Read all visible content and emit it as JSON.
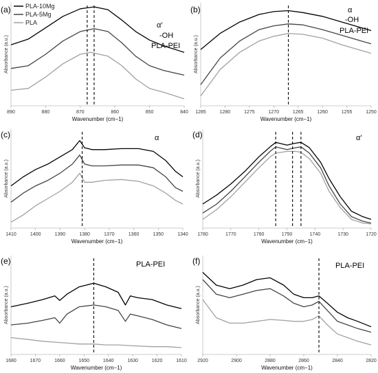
{
  "chart_data": [
    {
      "type": "line",
      "panel_label": "(a)",
      "xlabel": "Wavenumber (cm−1)",
      "ylabel": "Absorbance (a.u.)",
      "xlim": [
        890,
        840
      ],
      "ylim": [
        0,
        1
      ],
      "xticks": [
        890,
        880,
        870,
        860,
        850,
        840
      ],
      "annotations": [
        "α′",
        "-OH",
        "PLA-PEI"
      ],
      "vlines": [
        868,
        866
      ],
      "legend": [
        "PLA-10Mg",
        "PLA-5Mg",
        "PLA"
      ],
      "series": [
        {
          "name": "PLA-10Mg",
          "color": "#000000",
          "x": [
            890,
            885,
            880,
            875,
            870,
            866,
            862,
            858,
            854,
            850,
            846,
            840
          ],
          "y": [
            0.6,
            0.66,
            0.78,
            0.9,
            0.98,
            1.0,
            0.97,
            0.86,
            0.74,
            0.65,
            0.59,
            0.52
          ]
        },
        {
          "name": "PLA-5Mg",
          "color": "#444444",
          "x": [
            890,
            885,
            880,
            875,
            870,
            866,
            862,
            858,
            854,
            850,
            846,
            840
          ],
          "y": [
            0.35,
            0.38,
            0.5,
            0.64,
            0.74,
            0.77,
            0.74,
            0.62,
            0.48,
            0.38,
            0.33,
            0.28
          ]
        },
        {
          "name": "PLA",
          "color": "#a0a0a0",
          "x": [
            890,
            885,
            880,
            875,
            870,
            867,
            862,
            858,
            854,
            850,
            846,
            840
          ],
          "y": [
            0.12,
            0.14,
            0.26,
            0.4,
            0.5,
            0.52,
            0.48,
            0.38,
            0.24,
            0.14,
            0.1,
            0.03
          ]
        }
      ]
    },
    {
      "type": "line",
      "panel_label": "(b)",
      "xlabel": "Wavenumber (cm−1)",
      "ylabel": "Absorbance (a.u.)",
      "xlim": [
        1285,
        1250
      ],
      "ylim": [
        0,
        1
      ],
      "xticks": [
        1285,
        1280,
        1275,
        1270,
        1265,
        1260,
        1255,
        1250
      ],
      "annotations": [
        "α",
        "-OH",
        "PLA-PEI"
      ],
      "vlines": [
        1267
      ],
      "series": [
        {
          "name": "PLA-10Mg",
          "color": "#000000",
          "x": [
            1285,
            1281,
            1277,
            1273,
            1270,
            1267,
            1264,
            1260,
            1256,
            1252,
            1250
          ],
          "y": [
            0.55,
            0.72,
            0.84,
            0.92,
            0.95,
            0.96,
            0.94,
            0.9,
            0.84,
            0.78,
            0.75
          ]
        },
        {
          "name": "PLA-5Mg",
          "color": "#444444",
          "x": [
            1285,
            1281,
            1277,
            1273,
            1270,
            1267,
            1264,
            1260,
            1256,
            1252,
            1250
          ],
          "y": [
            0.18,
            0.46,
            0.64,
            0.76,
            0.8,
            0.82,
            0.81,
            0.76,
            0.7,
            0.64,
            0.61
          ]
        },
        {
          "name": "PLA",
          "color": "#a0a0a0",
          "x": [
            1285,
            1281,
            1277,
            1273,
            1270,
            1267,
            1264,
            1260,
            1256,
            1252,
            1250
          ],
          "y": [
            0.06,
            0.34,
            0.52,
            0.64,
            0.69,
            0.72,
            0.71,
            0.67,
            0.6,
            0.54,
            0.51
          ]
        }
      ]
    },
    {
      "type": "line",
      "panel_label": "(c)",
      "xlabel": "Wavenumber (cm−1)",
      "ylabel": "Absorbance (a.u.)",
      "xlim": [
        1410,
        1340
      ],
      "ylim": [
        0,
        1
      ],
      "xticks": [
        1410,
        1400,
        1390,
        1380,
        1370,
        1360,
        1350,
        1340
      ],
      "annotations": [
        "α"
      ],
      "vlines": [
        1381
      ],
      "series": [
        {
          "name": "PLA-10Mg",
          "color": "#000000",
          "x": [
            1410,
            1405,
            1400,
            1395,
            1390,
            1385,
            1382,
            1380,
            1377,
            1372,
            1365,
            1358,
            1352,
            1347,
            1343,
            1340
          ],
          "y": [
            0.42,
            0.52,
            0.6,
            0.66,
            0.74,
            0.82,
            0.92,
            0.84,
            0.82,
            0.82,
            0.83,
            0.83,
            0.8,
            0.7,
            0.58,
            0.52
          ]
        },
        {
          "name": "PLA-5Mg",
          "color": "#444444",
          "x": [
            1410,
            1405,
            1400,
            1395,
            1390,
            1385,
            1382,
            1380,
            1377,
            1372,
            1365,
            1358,
            1352,
            1347,
            1343,
            1340
          ],
          "y": [
            0.24,
            0.34,
            0.42,
            0.48,
            0.56,
            0.66,
            0.76,
            0.66,
            0.64,
            0.64,
            0.65,
            0.65,
            0.62,
            0.52,
            0.4,
            0.36
          ]
        },
        {
          "name": "PLA",
          "color": "#a0a0a0",
          "x": [
            1410,
            1405,
            1400,
            1395,
            1390,
            1385,
            1382,
            1380,
            1377,
            1372,
            1365,
            1358,
            1352,
            1347,
            1343,
            1340
          ],
          "y": [
            0.02,
            0.1,
            0.2,
            0.28,
            0.36,
            0.46,
            0.56,
            0.46,
            0.46,
            0.48,
            0.49,
            0.47,
            0.42,
            0.34,
            0.26,
            0.22
          ]
        }
      ]
    },
    {
      "type": "line",
      "panel_label": "(d)",
      "xlabel": "Wavenumber (cm−1)",
      "ylabel": "Absorbance (a.u.)",
      "xlim": [
        1780,
        1720
      ],
      "ylim": [
        0,
        1
      ],
      "xticks": [
        1780,
        1770,
        1760,
        1750,
        1740,
        1730,
        1720
      ],
      "annotations": [
        "α′"
      ],
      "vlines": [
        1754,
        1748,
        1745
      ],
      "series": [
        {
          "name": "PLA-10Mg",
          "color": "#000000",
          "x": [
            1780,
            1775,
            1770,
            1765,
            1760,
            1756,
            1754,
            1750,
            1747,
            1745,
            1742,
            1738,
            1735,
            1731,
            1727,
            1723,
            1720
          ],
          "y": [
            0.22,
            0.32,
            0.44,
            0.58,
            0.74,
            0.85,
            0.9,
            0.87,
            0.89,
            0.9,
            0.84,
            0.68,
            0.5,
            0.3,
            0.14,
            0.08,
            0.05
          ]
        },
        {
          "name": "PLA-5Mg",
          "color": "#444444",
          "x": [
            1780,
            1775,
            1770,
            1765,
            1760,
            1756,
            1754,
            1750,
            1747,
            1745,
            1742,
            1738,
            1735,
            1731,
            1727,
            1723,
            1720
          ],
          "y": [
            0.12,
            0.22,
            0.36,
            0.52,
            0.68,
            0.8,
            0.85,
            0.82,
            0.84,
            0.85,
            0.78,
            0.62,
            0.42,
            0.22,
            0.08,
            0.03,
            0.01
          ]
        },
        {
          "name": "PLA",
          "color": "#a0a0a0",
          "x": [
            1780,
            1775,
            1770,
            1765,
            1760,
            1756,
            1754,
            1750,
            1747,
            1745,
            1742,
            1738,
            1735,
            1731,
            1727,
            1723,
            1720
          ],
          "y": [
            0.05,
            0.16,
            0.3,
            0.46,
            0.62,
            0.74,
            0.78,
            0.8,
            0.8,
            0.79,
            0.72,
            0.56,
            0.36,
            0.18,
            0.05,
            0.01,
            0.0
          ]
        }
      ]
    },
    {
      "type": "line",
      "panel_label": "(e)",
      "xlabel": "Wavenumber (cm−1)",
      "ylabel": "Absorbance (a.u.)",
      "xlim": [
        1680,
        1610
      ],
      "ylim": [
        0,
        1
      ],
      "xticks": [
        1680,
        1670,
        1660,
        1650,
        1640,
        1630,
        1620,
        1610
      ],
      "annotations": [
        "PLA-PEI"
      ],
      "vlines": [
        1646
      ],
      "series": [
        {
          "name": "PLA-10Mg",
          "color": "#000000",
          "x": [
            1680,
            1673,
            1667,
            1662,
            1660,
            1657,
            1652,
            1646,
            1641,
            1636,
            1633,
            1631,
            1628,
            1622,
            1616,
            1610
          ],
          "y": [
            0.48,
            0.52,
            0.56,
            0.6,
            0.55,
            0.62,
            0.7,
            0.74,
            0.7,
            0.64,
            0.5,
            0.6,
            0.58,
            0.56,
            0.5,
            0.46
          ]
        },
        {
          "name": "PLA-5Mg",
          "color": "#444444",
          "x": [
            1680,
            1673,
            1667,
            1662,
            1660,
            1657,
            1652,
            1646,
            1641,
            1636,
            1633,
            1631,
            1628,
            1622,
            1616,
            1610
          ],
          "y": [
            0.28,
            0.3,
            0.33,
            0.36,
            0.3,
            0.4,
            0.48,
            0.5,
            0.48,
            0.44,
            0.32,
            0.4,
            0.38,
            0.34,
            0.28,
            0.24
          ]
        },
        {
          "name": "PLA",
          "color": "#a0a0a0",
          "x": [
            1680,
            1673,
            1667,
            1662,
            1657,
            1652,
            1646,
            1641,
            1636,
            1630,
            1622,
            1616,
            1610
          ],
          "y": [
            0.14,
            0.12,
            0.1,
            0.09,
            0.08,
            0.07,
            0.07,
            0.06,
            0.06,
            0.05,
            0.04,
            0.04,
            0.03
          ]
        }
      ]
    },
    {
      "type": "line",
      "panel_label": "(f)",
      "xlabel": "Wavenumber (cm−1)",
      "ylabel": "Absorbance (a.u.)",
      "xlim": [
        2920,
        2820
      ],
      "ylim": [
        0,
        1
      ],
      "xticks": [
        2920,
        2900,
        2880,
        2860,
        2840,
        2820
      ],
      "annotations": [
        "PLA-PEI"
      ],
      "vlines": [
        2851
      ],
      "series": [
        {
          "name": "PLA-10Mg",
          "color": "#000000",
          "x": [
            2920,
            2912,
            2904,
            2896,
            2888,
            2880,
            2872,
            2866,
            2860,
            2855,
            2851,
            2846,
            2840,
            2834,
            2828,
            2820
          ],
          "y": [
            0.86,
            0.72,
            0.68,
            0.72,
            0.78,
            0.8,
            0.72,
            0.62,
            0.58,
            0.58,
            0.6,
            0.52,
            0.42,
            0.36,
            0.32,
            0.26
          ]
        },
        {
          "name": "PLA-5Mg",
          "color": "#444444",
          "x": [
            2920,
            2912,
            2904,
            2896,
            2888,
            2880,
            2872,
            2866,
            2860,
            2855,
            2851,
            2846,
            2840,
            2834,
            2828,
            2820
          ],
          "y": [
            0.78,
            0.62,
            0.58,
            0.62,
            0.66,
            0.68,
            0.6,
            0.52,
            0.48,
            0.5,
            0.54,
            0.44,
            0.32,
            0.28,
            0.24,
            0.2
          ]
        },
        {
          "name": "PLA",
          "color": "#a0a0a0",
          "x": [
            2920,
            2912,
            2904,
            2896,
            2888,
            2880,
            2872,
            2866,
            2860,
            2855,
            2851,
            2846,
            2840,
            2834,
            2828,
            2820
          ],
          "y": [
            0.56,
            0.36,
            0.3,
            0.3,
            0.32,
            0.34,
            0.33,
            0.32,
            0.32,
            0.34,
            0.38,
            0.28,
            0.18,
            0.14,
            0.1,
            0.06
          ]
        }
      ]
    }
  ]
}
